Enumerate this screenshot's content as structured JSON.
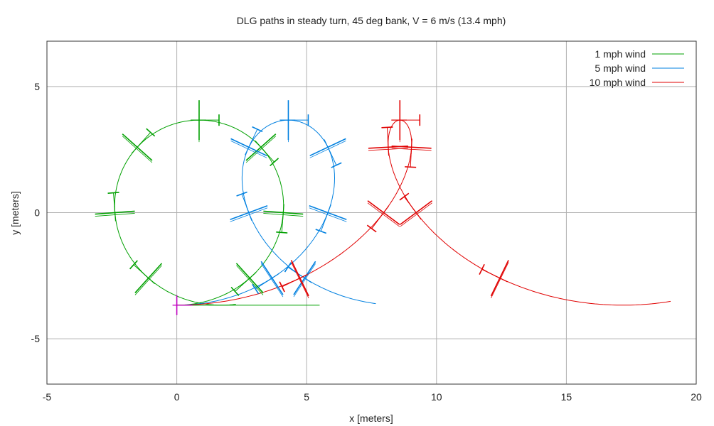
{
  "chart_data": {
    "type": "line",
    "title": "DLG paths in steady turn,  45 deg bank, V = 6 m/s (13.4 mph)",
    "xlabel": "x  [meters]",
    "ylabel": "y  [meters]",
    "xlim": [
      -5,
      20
    ],
    "ylim": [
      -6.8,
      6.8
    ],
    "xticks": [
      -5,
      0,
      5,
      10,
      15,
      20
    ],
    "yticks": [
      -5,
      0,
      5
    ],
    "grid": true,
    "legend_position": "top-right",
    "series": [
      {
        "name": "1 mph wind",
        "color": "#00a000",
        "x0": 1.0,
        "y0": 0.0,
        "vx": 0.447,
        "end_x": 5.5
      },
      {
        "name": "5 mph wind",
        "color": "#0080e0",
        "x0": 1.0,
        "y0": 0.0,
        "vx": 2.235,
        "end_x": 7.6
      },
      {
        "name": "10 mph wind",
        "color": "#e00000",
        "x0": 1.0,
        "y0": 0.0,
        "vx": 4.47,
        "end_x": 19.0
      }
    ],
    "turn": {
      "radius": 3.67,
      "speed": 6.0,
      "start_direction": "east"
    },
    "start_marker": {
      "x": 0.0,
      "y": -3.67,
      "color": "#c000c0"
    }
  }
}
